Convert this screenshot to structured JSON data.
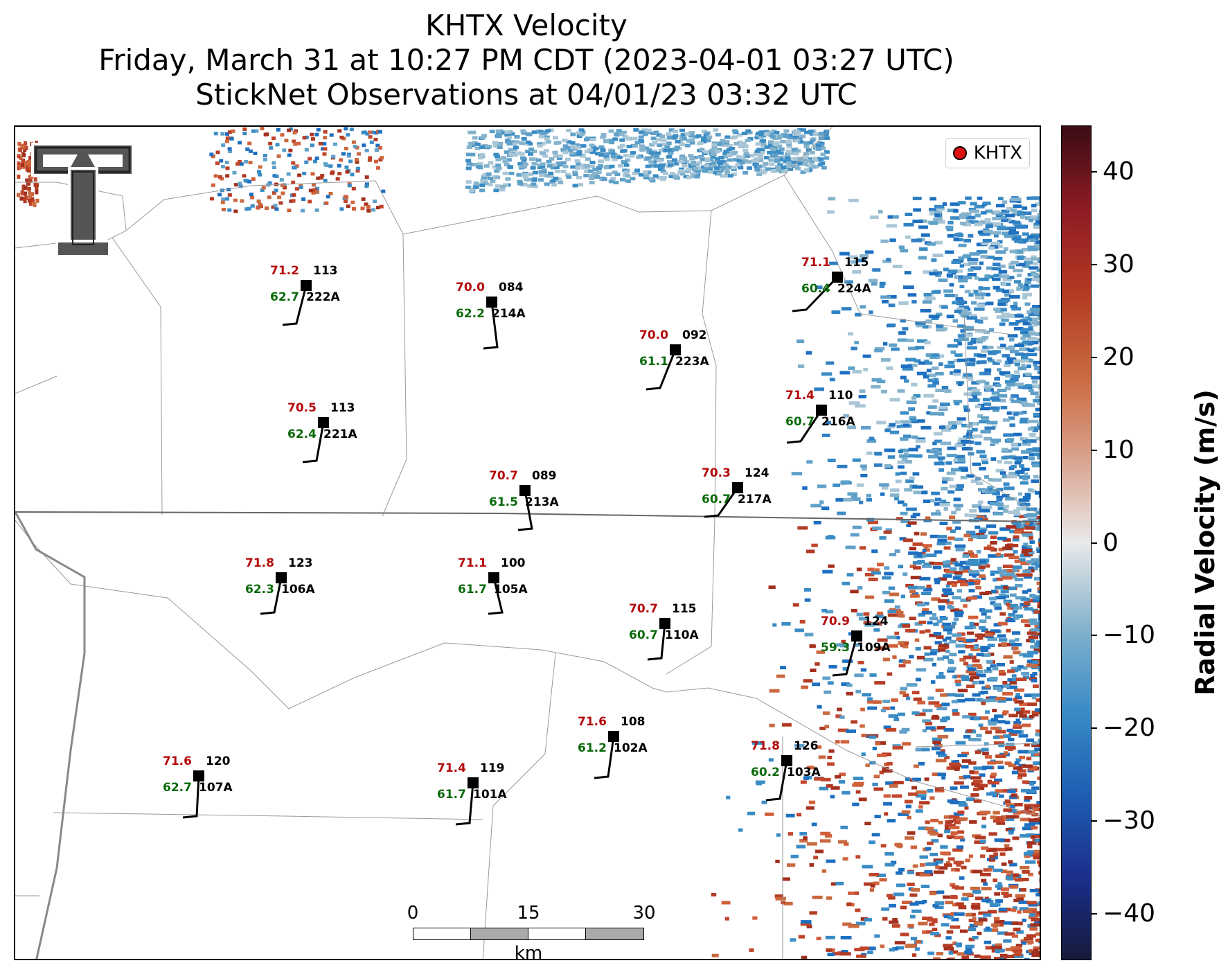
{
  "title": {
    "line1": "KHTX Velocity",
    "line2": "Friday, March 31 at 10:27 PM CDT (2023-04-01 03:27 UTC)",
    "line3": "StickNet Observations at 04/01/23 03:32 UTC"
  },
  "legend": {
    "label": "KHTX"
  },
  "scalebar": {
    "ticks": [
      "0",
      "15",
      "30"
    ],
    "unit": "km"
  },
  "colorbar": {
    "label": "Radial Velocity (m/s)",
    "range": [
      -45,
      45
    ],
    "ticks": [
      "40",
      "30",
      "20",
      "10",
      "0",
      "−10",
      "−20",
      "−30",
      "−40"
    ]
  },
  "colors": {
    "temperature": "#b50a0a",
    "dewpoint": "#0b6a0b",
    "inbound": "#1d6fc0",
    "outbound": "#c0452a"
  },
  "stations": [
    {
      "id": "222A",
      "temp": "71.2",
      "dew": "62.7",
      "gust": "113"
    },
    {
      "id": "214A",
      "temp": "70.0",
      "dew": "62.2",
      "gust": "084"
    },
    {
      "id": "223A",
      "temp": "70.0",
      "dew": "61.1",
      "gust": "092"
    },
    {
      "id": "224A",
      "temp": "71.1",
      "dew": "60.4",
      "gust": "115"
    },
    {
      "id": "221A",
      "temp": "70.5",
      "dew": "62.4",
      "gust": "113"
    },
    {
      "id": "216A",
      "temp": "71.4",
      "dew": "60.7",
      "gust": "110"
    },
    {
      "id": "213A",
      "temp": "70.7",
      "dew": "61.5",
      "gust": "089"
    },
    {
      "id": "217A",
      "temp": "70.3",
      "dew": "60.7",
      "gust": "124"
    },
    {
      "id": "106A",
      "temp": "71.8",
      "dew": "62.3",
      "gust": "123"
    },
    {
      "id": "105A",
      "temp": "71.1",
      "dew": "61.7",
      "gust": "100"
    },
    {
      "id": "110A",
      "temp": "70.7",
      "dew": "60.7",
      "gust": "115"
    },
    {
      "id": "109A",
      "temp": "70.9",
      "dew": "59.3",
      "gust": "124"
    },
    {
      "id": "102A",
      "temp": "71.6",
      "dew": "61.2",
      "gust": "108"
    },
    {
      "id": "103A",
      "temp": "71.8",
      "dew": "60.2",
      "gust": "126"
    },
    {
      "id": "107A",
      "temp": "71.6",
      "dew": "62.7",
      "gust": "120"
    },
    {
      "id": "101A",
      "temp": "71.4",
      "dew": "61.7",
      "gust": "119"
    }
  ]
}
